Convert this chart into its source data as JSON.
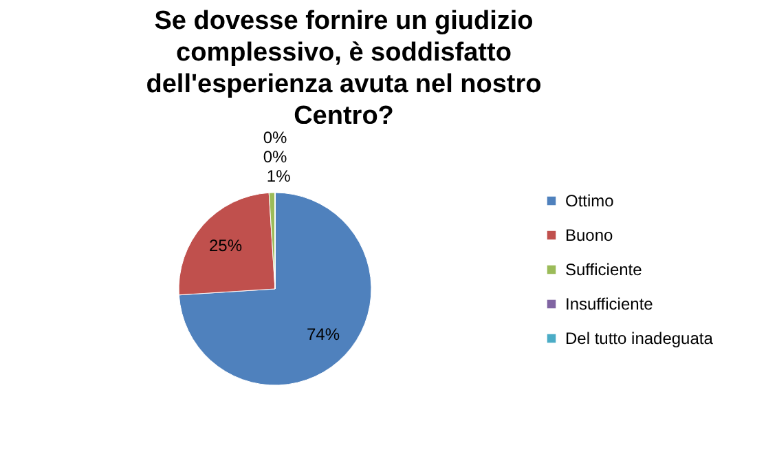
{
  "chart_data": {
    "type": "pie",
    "title": "Se dovesse fornire un giudizio complessivo, è soddisfatto dell'esperienza avuta nel nostro Centro?",
    "categories": [
      "Ottimo",
      "Buono",
      "Sufficiente",
      "Insufficiente",
      "Del tutto inadeguata"
    ],
    "values": [
      74,
      25,
      1,
      0,
      0
    ],
    "colors": [
      "#4f81bd",
      "#c0504d",
      "#9bbb59",
      "#8064a2",
      "#4bacc6"
    ],
    "value_labels": [
      "74%",
      "25%",
      "1%",
      "0%",
      "0%"
    ],
    "legend": "right"
  }
}
